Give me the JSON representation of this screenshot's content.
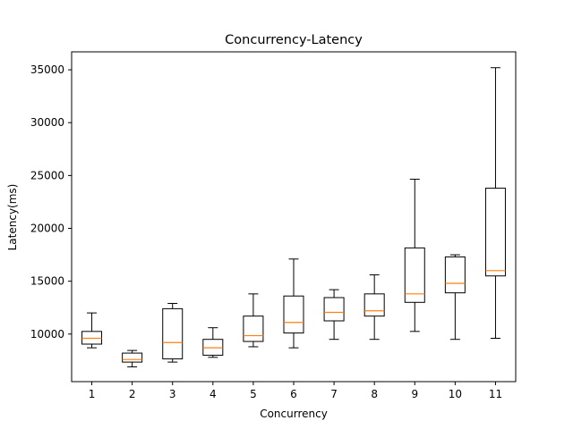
{
  "chart_data": {
    "type": "boxplot",
    "title": "Concurrency-Latency",
    "xlabel": "Concurrency",
    "ylabel": "Latency(ms)",
    "categories": [
      "1",
      "2",
      "3",
      "4",
      "5",
      "6",
      "7",
      "8",
      "9",
      "10",
      "11"
    ],
    "y_ticks": [
      10000,
      15000,
      20000,
      25000,
      30000,
      35000
    ],
    "y_tick_labels": [
      "10000",
      "15000",
      "20000",
      "25000",
      "30000",
      "35000"
    ],
    "ylim": [
      5500,
      36700
    ],
    "grid": false,
    "boxes": [
      {
        "category": "1",
        "whisker_low": 8700,
        "q1": 9050,
        "median": 9600,
        "q3": 10250,
        "whisker_high": 12000
      },
      {
        "category": "2",
        "whisker_low": 6900,
        "q1": 7350,
        "median": 7600,
        "q3": 8200,
        "whisker_high": 8450
      },
      {
        "category": "3",
        "whisker_low": 7350,
        "q1": 7650,
        "median": 9200,
        "q3": 12400,
        "whisker_high": 12900
      },
      {
        "category": "4",
        "whisker_low": 7800,
        "q1": 8000,
        "median": 8700,
        "q3": 9500,
        "whisker_high": 10600
      },
      {
        "category": "5",
        "whisker_low": 8800,
        "q1": 9300,
        "median": 9850,
        "q3": 11700,
        "whisker_high": 13800
      },
      {
        "category": "6",
        "whisker_low": 8700,
        "q1": 10100,
        "median": 11100,
        "q3": 13600,
        "whisker_high": 17100
      },
      {
        "category": "7",
        "whisker_low": 9500,
        "q1": 11250,
        "median": 12050,
        "q3": 13450,
        "whisker_high": 14200
      },
      {
        "category": "8",
        "whisker_low": 9500,
        "q1": 11700,
        "median": 12200,
        "q3": 13800,
        "whisker_high": 15600
      },
      {
        "category": "9",
        "whisker_low": 10250,
        "q1": 13000,
        "median": 13800,
        "q3": 18150,
        "whisker_high": 24650
      },
      {
        "category": "10",
        "whisker_low": 9500,
        "q1": 13900,
        "median": 14800,
        "q3": 17300,
        "whisker_high": 17500
      },
      {
        "category": "11",
        "whisker_low": 9600,
        "q1": 15500,
        "median": 16000,
        "q3": 23800,
        "whisker_high": 35200
      }
    ],
    "colors": {
      "box": "#000000",
      "median": "#ff7f0e",
      "background": "#ffffff"
    }
  }
}
